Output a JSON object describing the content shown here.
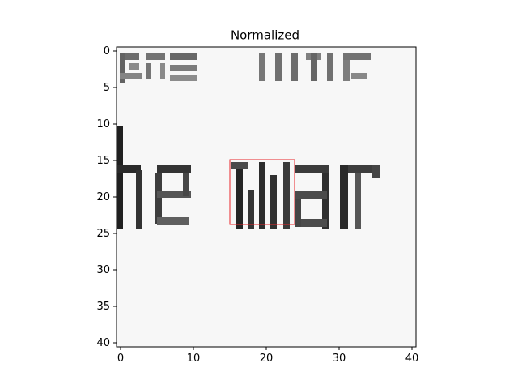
{
  "chart_data": {
    "type": "heatmap",
    "title": "Normalized",
    "colormap": "gray",
    "xlim": [
      -0.5,
      40.5
    ],
    "ylim": [
      40.5,
      -0.5
    ],
    "grid": false,
    "xticks": [
      0,
      10,
      20,
      30,
      40
    ],
    "yticks": [
      0,
      5,
      10,
      15,
      20,
      25,
      30,
      35,
      40
    ],
    "xtick_labels": [
      "0",
      "10",
      "20",
      "30",
      "40"
    ],
    "ytick_labels": [
      "0",
      "5",
      "10",
      "15",
      "20",
      "25",
      "30",
      "35",
      "40"
    ],
    "image_rows": 41,
    "image_cols": 41,
    "text_in_image": "he war",
    "highlight_box": {
      "x": [
        15,
        24
      ],
      "y": [
        15,
        24
      ],
      "color": "#e8262a"
    }
  }
}
